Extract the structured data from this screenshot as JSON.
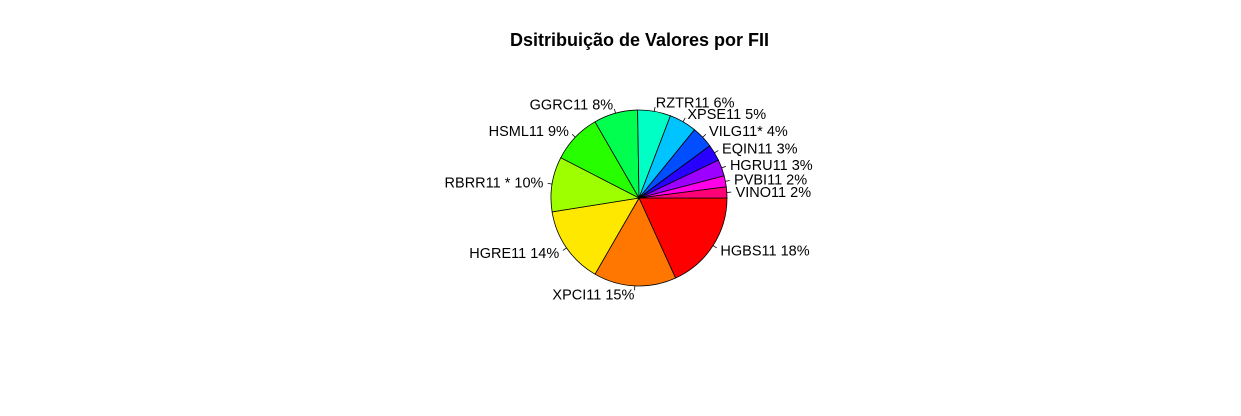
{
  "chart_data": {
    "type": "pie",
    "title": "Dsitribuição de Valores por FII",
    "slices": [
      {
        "label": "HGBS11 18%",
        "value": 18,
        "color": "#FF0000"
      },
      {
        "label": "XPCI11 15%",
        "value": 15,
        "color": "#FF7700"
      },
      {
        "label": "HGRE11 14%",
        "value": 14,
        "color": "#FFE800"
      },
      {
        "label": "RBRR11 * 10%",
        "value": 10,
        "color": "#9DFF00"
      },
      {
        "label": "HSML11 9%",
        "value": 9,
        "color": "#27FF00"
      },
      {
        "label": "GGRC11 8%",
        "value": 8,
        "color": "#00FF4E"
      },
      {
        "label": "RZTR11 6%",
        "value": 6,
        "color": "#00FFC4"
      },
      {
        "label": "XPSE11 5%",
        "value": 5,
        "color": "#00C4FF"
      },
      {
        "label": "VILG11* 4%",
        "value": 4,
        "color": "#004EFF"
      },
      {
        "label": "EQIN11 3%",
        "value": 3,
        "color": "#2700FF"
      },
      {
        "label": "HGRU11 3%",
        "value": 3,
        "color": "#9D00FF"
      },
      {
        "label": "PVBI11 2%",
        "value": 2,
        "color": "#FF00E8"
      },
      {
        "label": "VINO11 2%",
        "value": 2,
        "color": "#FF0077"
      }
    ],
    "legend": "none"
  }
}
